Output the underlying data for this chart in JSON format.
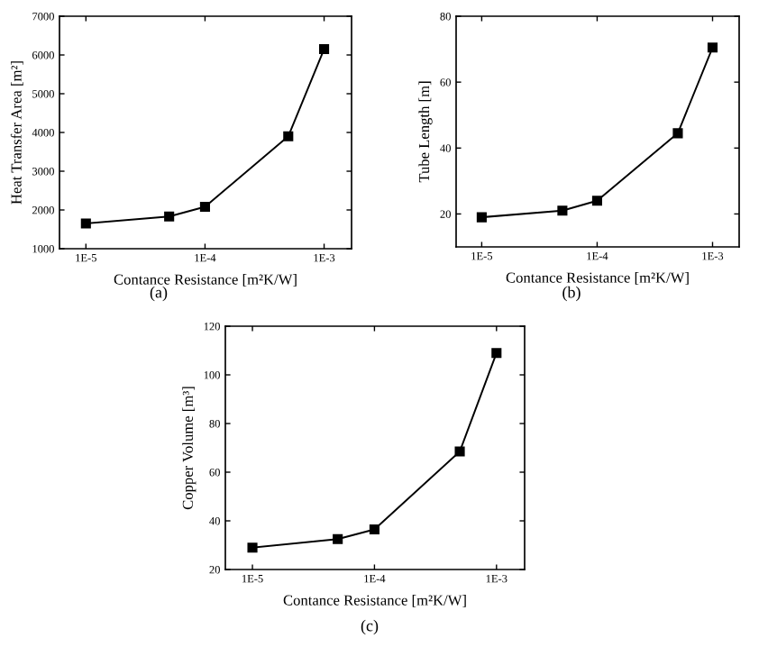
{
  "chart_data": [
    {
      "type": "line",
      "x": [
        1e-05,
        5e-05,
        0.0001,
        0.0005,
        0.001
      ],
      "values": [
        1650,
        1830,
        2080,
        3900,
        6150
      ],
      "color": "#000000",
      "marker": "square",
      "line_style": "solid",
      "log": "x",
      "xlim": [
        6e-06,
        0.0017
      ],
      "xticks": [
        {
          "value": 1e-05,
          "label": "1E-5"
        },
        {
          "value": 0.0001,
          "label": "1E-4"
        },
        {
          "value": 0.001,
          "label": "1E-3"
        }
      ],
      "ylim": [
        1000,
        7000
      ],
      "yticks": [
        1000,
        2000,
        3000,
        4000,
        5000,
        6000,
        7000
      ],
      "xlabel": "Contance Resistance [m²K/W]",
      "ylabel": "Heat Transfer Area [m²]",
      "annotations": [
        "(a)"
      ],
      "grid": false,
      "legend": false
    },
    {
      "type": "line",
      "x": [
        1e-05,
        5e-05,
        0.0001,
        0.0005,
        0.001
      ],
      "values": [
        19,
        21,
        24,
        44.5,
        70.5
      ],
      "color": "#000000",
      "marker": "square",
      "line_style": "solid",
      "log": "x",
      "xlim": [
        6e-06,
        0.0017
      ],
      "xticks": [
        {
          "value": 1e-05,
          "label": "1E-5"
        },
        {
          "value": 0.0001,
          "label": "1E-4"
        },
        {
          "value": 0.001,
          "label": "1E-3"
        }
      ],
      "ylim": [
        10,
        80
      ],
      "yticks": [
        20,
        40,
        60,
        80
      ],
      "xlabel": "Contance Resistance [m²K/W]",
      "ylabel": "Tube Length [m]",
      "annotations": [
        "(b)"
      ],
      "grid": false,
      "legend": false
    },
    {
      "type": "line",
      "x": [
        1e-05,
        5e-05,
        0.0001,
        0.0005,
        0.001
      ],
      "values": [
        29,
        32.5,
        36.5,
        68.5,
        109
      ],
      "color": "#000000",
      "marker": "square",
      "line_style": "solid",
      "log": "x",
      "xlim": [
        6e-06,
        0.0017
      ],
      "xticks": [
        {
          "value": 1e-05,
          "label": "1E-5"
        },
        {
          "value": 0.0001,
          "label": "1E-4"
        },
        {
          "value": 0.001,
          "label": "1E-3"
        }
      ],
      "ylim": [
        20,
        120
      ],
      "yticks": [
        20,
        40,
        60,
        80,
        100,
        120
      ],
      "xlabel": "Contance Resistance [m²K/W]",
      "ylabel": "Copper Volume [m³]",
      "annotations": [
        "(c)"
      ],
      "grid": false,
      "legend": false
    }
  ]
}
